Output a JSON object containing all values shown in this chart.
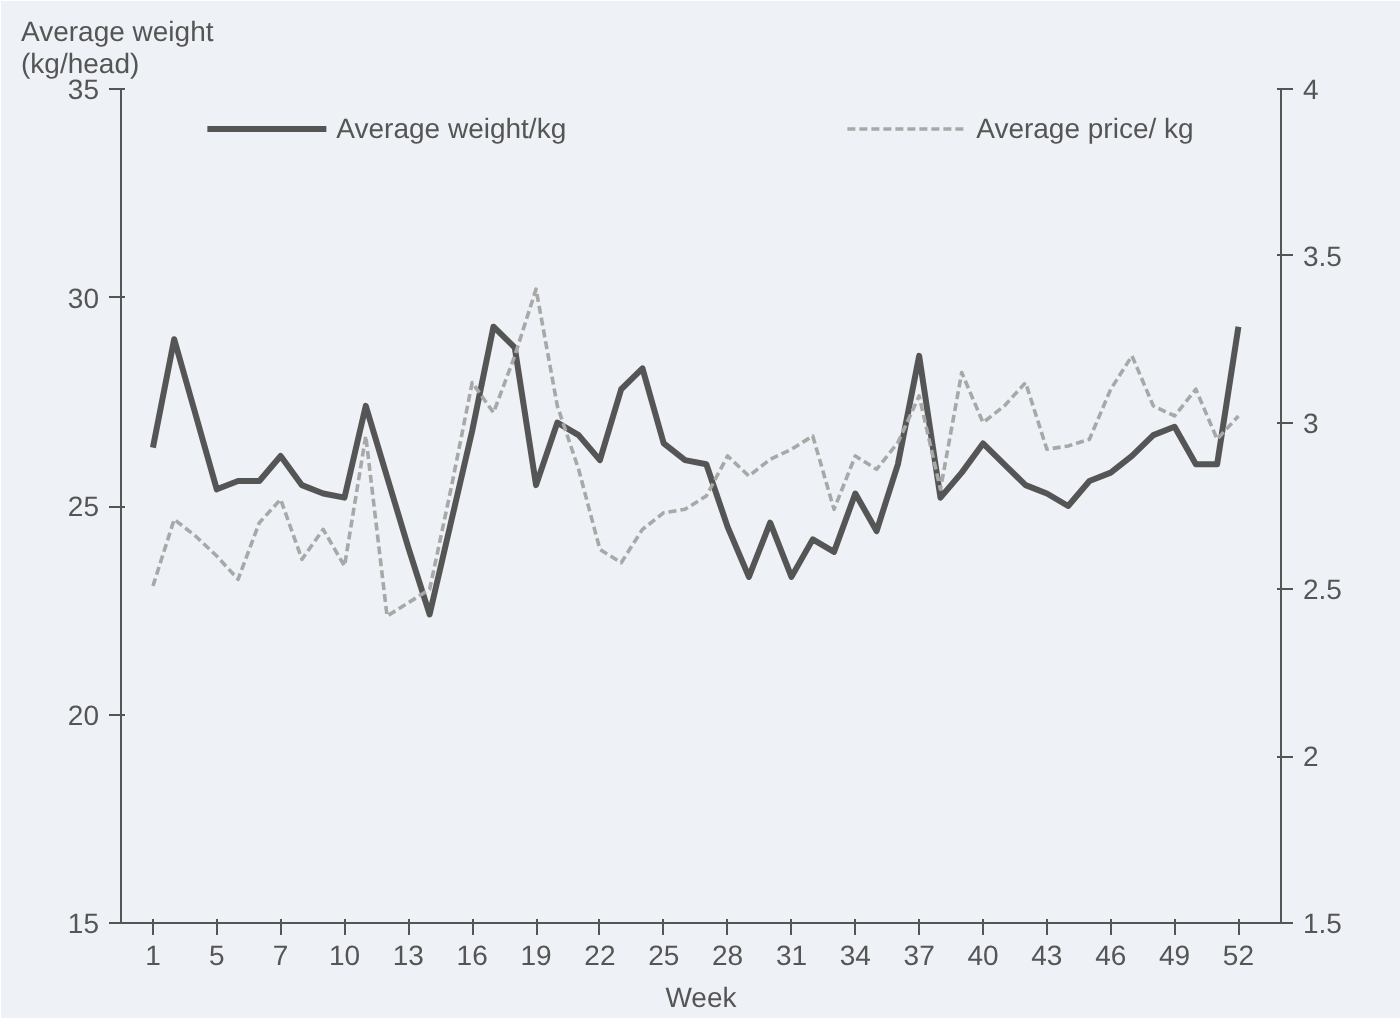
{
  "chart_data": {
    "type": "line",
    "ylabel": "Average weight\n(kg/head)",
    "xlabel": "Week",
    "categories": [
      "1",
      null,
      null,
      "5",
      null,
      null,
      "7",
      null,
      null,
      "10",
      null,
      null,
      "13",
      null,
      null,
      "16",
      null,
      null,
      "19",
      null,
      null,
      "22",
      null,
      null,
      "25",
      null,
      null,
      "28",
      null,
      null,
      "31",
      null,
      null,
      "34",
      null,
      null,
      "37",
      null,
      null,
      "40",
      null,
      null,
      "43",
      null,
      null,
      "46",
      null,
      null,
      "49",
      null,
      null,
      "52"
    ],
    "series": [
      {
        "name": "Average weight/kg",
        "color": "#555555",
        "line_style": "solid",
        "values": [
          26.4,
          29.0,
          27.2,
          25.4,
          25.6,
          25.6,
          26.2,
          25.5,
          25.3,
          25.2,
          27.4,
          25.7,
          24.0,
          22.4,
          24.6,
          26.8,
          29.3,
          28.8,
          25.5,
          27.0,
          26.7,
          26.1,
          27.8,
          28.3,
          26.5,
          26.1,
          26.0,
          24.5,
          23.3,
          24.6,
          23.3,
          24.2,
          23.9,
          25.3,
          24.4,
          26.0,
          28.6,
          25.2,
          25.8,
          26.5,
          26.0,
          25.5,
          25.3,
          25.0,
          25.6,
          25.8,
          26.2,
          26.7,
          26.9,
          26.0,
          26.0,
          29.3
        ]
      },
      {
        "name": "Average price/ kg",
        "color": "#a8a8a8",
        "line_style": "dashed",
        "axis": "y2",
        "values": [
          2.51,
          2.71,
          2.66,
          2.6,
          2.53,
          2.7,
          2.77,
          2.59,
          2.68,
          2.57,
          2.96,
          2.42,
          2.46,
          2.5,
          2.8,
          3.12,
          3.03,
          3.2,
          3.4,
          3.05,
          2.86,
          2.62,
          2.58,
          2.68,
          2.73,
          2.74,
          2.78,
          2.9,
          2.84,
          2.89,
          2.92,
          2.96,
          2.74,
          2.9,
          2.86,
          2.94,
          3.08,
          2.8,
          3.15,
          3.0,
          3.05,
          3.12,
          2.92,
          2.93,
          2.95,
          3.1,
          3.2,
          3.05,
          3.02,
          3.1,
          2.95,
          3.02
        ]
      }
    ],
    "ylim": [
      15,
      35
    ],
    "yticks": [
      15,
      20,
      25,
      30,
      35
    ],
    "y2lim": [
      1.5,
      4
    ],
    "y2ticks": [
      1.5,
      2,
      2.5,
      3,
      3.5,
      4
    ],
    "grid": false,
    "legend": "top",
    "marker": "none"
  }
}
